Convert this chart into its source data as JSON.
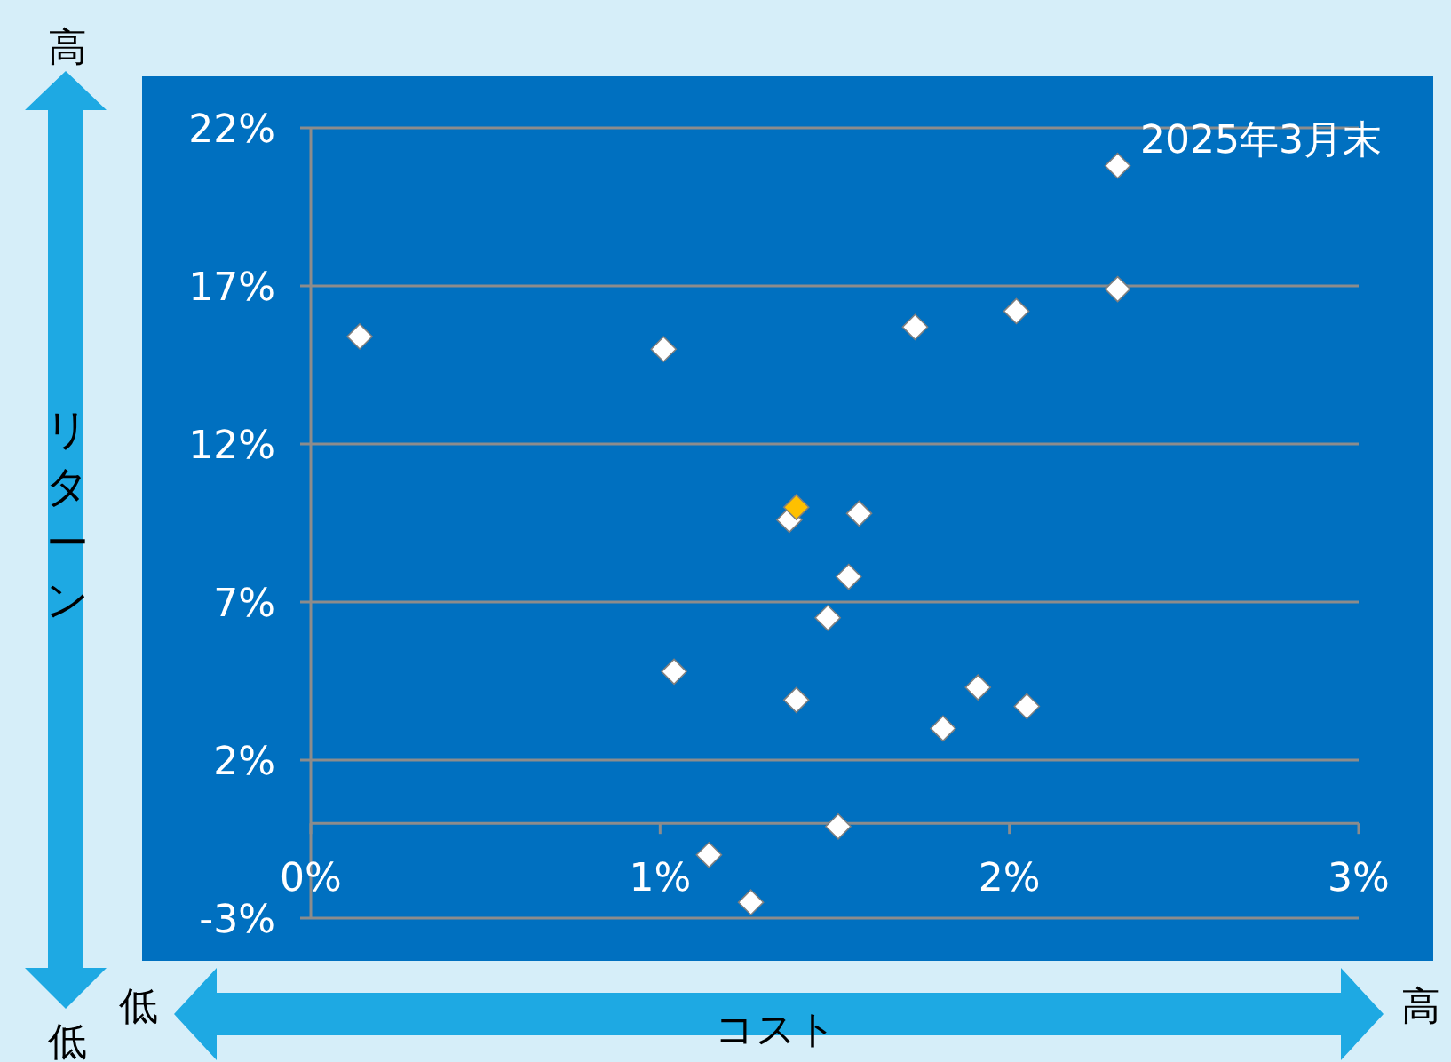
{
  "chart_data": {
    "type": "scatter",
    "xlabel": "コスト",
    "ylabel": "リターン",
    "marker": "diamond",
    "grid": "y",
    "xlim": [
      0,
      3
    ],
    "ylim": [
      -3,
      22
    ],
    "xticks": [
      {
        "value": 0,
        "label": "0%"
      },
      {
        "value": 1,
        "label": "1%"
      },
      {
        "value": 2,
        "label": "2%"
      },
      {
        "value": 3,
        "label": "3%"
      }
    ],
    "yticks": [
      {
        "value": -3,
        "label": "-3%"
      },
      {
        "value": 2,
        "label": "2%"
      },
      {
        "value": 7,
        "label": "7%"
      },
      {
        "value": 12,
        "label": "12%"
      },
      {
        "value": 17,
        "label": "17%"
      },
      {
        "value": 22,
        "label": "22%"
      }
    ],
    "annotations": [
      "2025年3月末",
      "高",
      "低",
      "低",
      "高"
    ],
    "series": [
      {
        "color": "#ffffff",
        "x": [
          0.14,
          1.01,
          1.73,
          2.02,
          2.31,
          2.31,
          1.37,
          1.57,
          1.54,
          1.48,
          1.04,
          1.39,
          1.91,
          2.05,
          1.81,
          1.51,
          1.14,
          1.26
        ],
        "values": [
          15.4,
          15.0,
          15.7,
          16.2,
          16.9,
          20.8,
          9.6,
          9.8,
          7.8,
          6.5,
          4.8,
          3.9,
          4.3,
          3.7,
          3.0,
          -0.1,
          -1.0,
          -2.5
        ]
      },
      {
        "color": "#ffc000",
        "x": [
          1.39
        ],
        "values": [
          10.0
        ]
      }
    ]
  }
}
